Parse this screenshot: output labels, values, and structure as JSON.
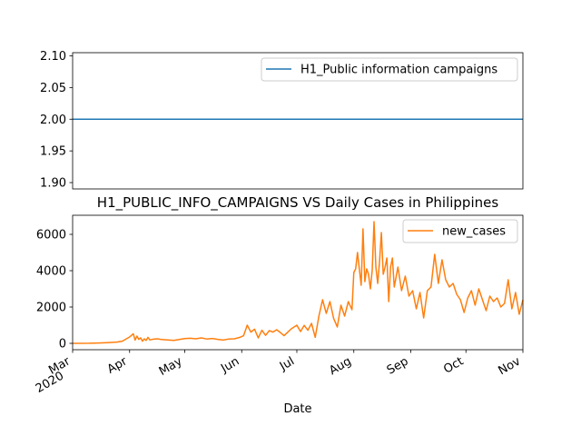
{
  "chart_data": [
    {
      "type": "line",
      "title": "",
      "xlabel": "",
      "ylabel": "",
      "ylim": [
        1.89,
        2.105
      ],
      "yticks": [
        "1.90",
        "1.95",
        "2.00",
        "2.05",
        "2.10"
      ],
      "ytick_values": [
        1.9,
        1.95,
        2.0,
        2.05,
        2.1
      ],
      "legend_position": "upper-right",
      "series": [
        {
          "name": "H1_Public information campaigns",
          "color": "#1f77b4",
          "x_range": [
            "2020-03-01",
            "2020-11-01"
          ],
          "constant_value": 2.0
        }
      ]
    },
    {
      "type": "line",
      "title": "H1_PUBLIC_INFO_CAMPAIGNS VS Daily Cases in Philippines",
      "xlabel": "Date",
      "ylabel": "",
      "ylim": [
        -350,
        7050
      ],
      "yticks": [
        "0",
        "2000",
        "4000",
        "6000"
      ],
      "ytick_values": [
        0,
        2000,
        4000,
        6000
      ],
      "xlim": [
        "2020-03-01",
        "2020-11-01"
      ],
      "xticks": [
        {
          "date": "2020-03-01",
          "label": "Mar",
          "sublabel": "2020"
        },
        {
          "date": "2020-04-01",
          "label": "Apr"
        },
        {
          "date": "2020-05-01",
          "label": "May"
        },
        {
          "date": "2020-06-01",
          "label": "Jun"
        },
        {
          "date": "2020-07-01",
          "label": "Jul"
        },
        {
          "date": "2020-08-01",
          "label": "Aug"
        },
        {
          "date": "2020-09-01",
          "label": "Sep"
        },
        {
          "date": "2020-10-01",
          "label": "Oct"
        },
        {
          "date": "2020-11-01",
          "label": "Nov"
        }
      ],
      "legend_position": "upper-right",
      "series": [
        {
          "name": "new_cases",
          "color": "#ff7f0e",
          "x": [
            "2020-03-01",
            "2020-03-10",
            "2020-03-15",
            "2020-03-20",
            "2020-03-25",
            "2020-03-28",
            "2020-04-01",
            "2020-04-03",
            "2020-04-04",
            "2020-04-05",
            "2020-04-06",
            "2020-04-07",
            "2020-04-08",
            "2020-04-09",
            "2020-04-10",
            "2020-04-11",
            "2020-04-12",
            "2020-04-14",
            "2020-04-16",
            "2020-04-18",
            "2020-04-20",
            "2020-04-25",
            "2020-04-28",
            "2020-05-01",
            "2020-05-04",
            "2020-05-07",
            "2020-05-10",
            "2020-05-13",
            "2020-05-16",
            "2020-05-19",
            "2020-05-22",
            "2020-05-25",
            "2020-05-28",
            "2020-05-31",
            "2020-06-02",
            "2020-06-04",
            "2020-06-06",
            "2020-06-08",
            "2020-06-10",
            "2020-06-12",
            "2020-06-14",
            "2020-06-16",
            "2020-06-18",
            "2020-06-20",
            "2020-06-22",
            "2020-06-24",
            "2020-06-26",
            "2020-06-28",
            "2020-07-01",
            "2020-07-03",
            "2020-07-05",
            "2020-07-07",
            "2020-07-09",
            "2020-07-11",
            "2020-07-13",
            "2020-07-15",
            "2020-07-17",
            "2020-07-19",
            "2020-07-21",
            "2020-07-23",
            "2020-07-25",
            "2020-07-27",
            "2020-07-29",
            "2020-07-31",
            "2020-08-01",
            "2020-08-02",
            "2020-08-03",
            "2020-08-04",
            "2020-08-05",
            "2020-08-06",
            "2020-08-07",
            "2020-08-08",
            "2020-08-09",
            "2020-08-10",
            "2020-08-11",
            "2020-08-12",
            "2020-08-13",
            "2020-08-14",
            "2020-08-15",
            "2020-08-16",
            "2020-08-17",
            "2020-08-18",
            "2020-08-19",
            "2020-08-20",
            "2020-08-21",
            "2020-08-22",
            "2020-08-23",
            "2020-08-25",
            "2020-08-27",
            "2020-08-29",
            "2020-08-31",
            "2020-09-02",
            "2020-09-04",
            "2020-09-06",
            "2020-09-08",
            "2020-09-10",
            "2020-09-12",
            "2020-09-14",
            "2020-09-16",
            "2020-09-18",
            "2020-09-20",
            "2020-09-22",
            "2020-09-24",
            "2020-09-26",
            "2020-09-28",
            "2020-09-30",
            "2020-10-02",
            "2020-10-04",
            "2020-10-06",
            "2020-10-08",
            "2020-10-10",
            "2020-10-12",
            "2020-10-14",
            "2020-10-16",
            "2020-10-18",
            "2020-10-20",
            "2020-10-22",
            "2020-10-24",
            "2020-10-26",
            "2020-10-28",
            "2020-10-30",
            "2020-11-01"
          ],
          "y": [
            0,
            5,
            20,
            40,
            70,
            120,
            350,
            530,
            180,
            400,
            220,
            300,
            120,
            250,
            160,
            330,
            190,
            230,
            250,
            220,
            200,
            160,
            210,
            260,
            280,
            250,
            300,
            240,
            270,
            220,
            180,
            240,
            250,
            330,
            420,
            1000,
            620,
            780,
            300,
            720,
            440,
            700,
            620,
            750,
            600,
            420,
            610,
            800,
            1000,
            650,
            990,
            720,
            1100,
            330,
            1500,
            2400,
            1650,
            2300,
            1380,
            900,
            2100,
            1500,
            2300,
            1850,
            3900,
            4100,
            5000,
            4100,
            3200,
            6300,
            3400,
            4100,
            3800,
            3000,
            4000,
            6700,
            4200,
            3300,
            4500,
            6100,
            3800,
            4200,
            4700,
            2300,
            4200,
            4700,
            3100,
            4200,
            2900,
            3700,
            2600,
            2900,
            1900,
            2800,
            1400,
            2900,
            3100,
            4900,
            3300,
            4600,
            3500,
            3100,
            3300,
            2700,
            2400,
            1700,
            2500,
            2900,
            2100,
            3000,
            2400,
            1800,
            2600,
            2300,
            2500,
            2000,
            2200,
            3500,
            1900,
            2800,
            1600,
            2400
          ]
        }
      ]
    }
  ]
}
